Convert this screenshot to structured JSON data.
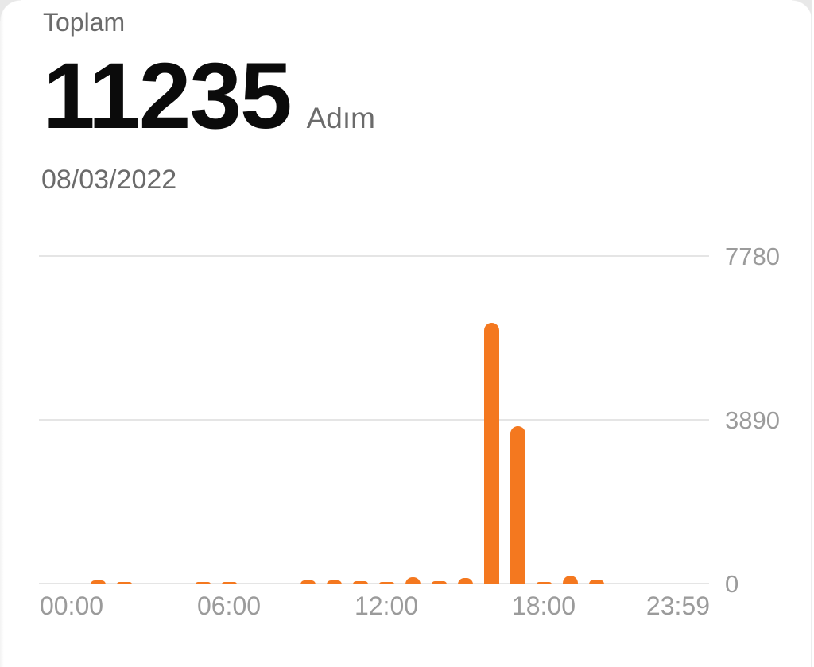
{
  "header": {
    "label": "Toplam",
    "total": "11235",
    "unit": "Adım",
    "date": "08/03/2022"
  },
  "chart_data": {
    "type": "bar",
    "title": "Toplam 11235 Adım",
    "xlabel": "",
    "ylabel": "Adım",
    "categories": [
      "00:00",
      "01:00",
      "02:00",
      "03:00",
      "04:00",
      "05:00",
      "06:00",
      "07:00",
      "08:00",
      "09:00",
      "10:00",
      "11:00",
      "12:00",
      "13:00",
      "14:00",
      "15:00",
      "16:00",
      "17:00",
      "18:00",
      "19:00",
      "20:00",
      "21:00",
      "22:00",
      "23:00"
    ],
    "values": [
      0,
      85,
      35,
      0,
      0,
      35,
      45,
      0,
      0,
      100,
      100,
      70,
      65,
      170,
      70,
      146,
      6212,
      3757,
      35,
      200,
      110,
      0,
      0,
      0
    ],
    "total": 11235,
    "ylim": [
      0,
      7780
    ],
    "yticks": [
      7780,
      3890,
      0
    ],
    "xticks": [
      "00:00",
      "06:00",
      "12:00",
      "18:00",
      "23:59"
    ],
    "legend": "none",
    "grid": "horizontal"
  },
  "colors": {
    "accent": "#f4781f",
    "text_primary": "#0b0b0b",
    "text_secondary": "#6b6b6b",
    "axis_label": "#9b9b9b",
    "gridline": "#e5e5e5"
  }
}
